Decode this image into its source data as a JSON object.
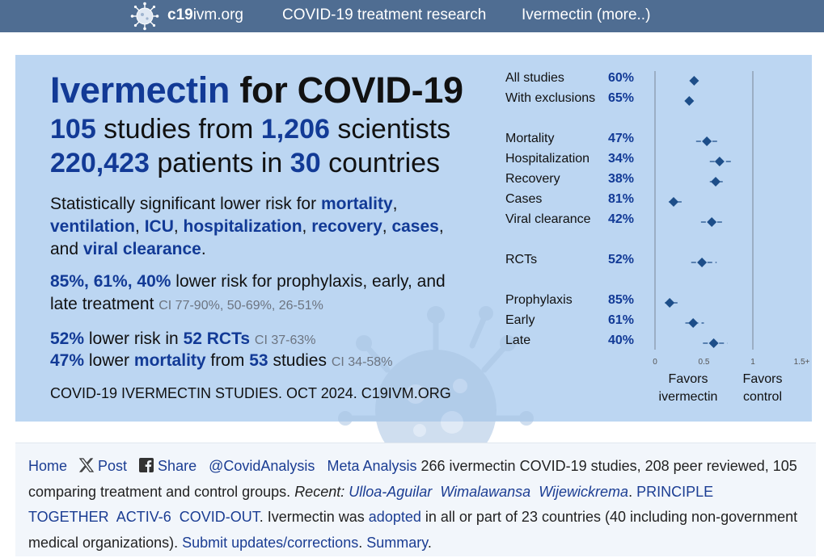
{
  "nav": {
    "site_bold": "c19",
    "site_rest": "ivm.org",
    "research": "COVID-19 treatment research",
    "more": "Ivermectin (more..)"
  },
  "banner": {
    "title_drug": "Ivermectin",
    "title_rest": " for COVID-19",
    "studies_num": "105",
    "studies_mid": " studies from ",
    "scientists_num": "1,206",
    "scientists_word": " scientists",
    "patients_num": "220,423",
    "patients_mid": " patients in ",
    "countries_num": "30",
    "countries_word": " countries",
    "sig_intro": "Statistically significant lower risk for ",
    "sig_items": [
      "mortality",
      "ventilation",
      "ICU",
      "hospitalization",
      "recovery",
      "cases"
    ],
    "sig_and": "and ",
    "sig_last": "viral clearance",
    "timing_pcts": "85%, 61%, 40%",
    "timing_text": " lower risk for prophylaxis, early, and late treatment ",
    "timing_ci": "CI 77-90%, 50-69%, 26-51%",
    "rct_pct": "52%",
    "rct_mid": " lower risk in ",
    "rct_count": "52 RCTs",
    "rct_ci": "CI 37-63%",
    "mort_pct": "47%",
    "mort_mid1": " lower ",
    "mort_word": "mortality",
    "mort_mid2": " from ",
    "mort_count": "53",
    "mort_mid3": " studies ",
    "mort_ci": "CI 34-58%",
    "footer": "COVID-19 IVERMECTIN STUDIES. OCT 2024. C19IVM.ORG"
  },
  "forest": {
    "rows": [
      {
        "label": "All studies",
        "value": "60%",
        "est": 0.4,
        "lo": 0.37,
        "hi": 0.44
      },
      {
        "label": "With exclusions",
        "value": "65%",
        "est": 0.35,
        "lo": 0.33,
        "hi": 0.38
      },
      {
        "label": "Mortality",
        "value": "47%",
        "est": 0.53,
        "lo": 0.42,
        "hi": 0.66
      },
      {
        "label": "Hospitalization",
        "value": "34%",
        "est": 0.66,
        "lo": 0.56,
        "hi": 0.78
      },
      {
        "label": "Recovery",
        "value": "38%",
        "est": 0.62,
        "lo": 0.56,
        "hi": 0.7
      },
      {
        "label": "Cases",
        "value": "81%",
        "est": 0.19,
        "lo": 0.14,
        "hi": 0.3
      },
      {
        "label": "Viral clearance",
        "value": "42%",
        "est": 0.58,
        "lo": 0.47,
        "hi": 0.71
      },
      {
        "label": "RCTs",
        "value": "52%",
        "est": 0.48,
        "lo": 0.37,
        "hi": 0.63
      },
      {
        "label": "Prophylaxis",
        "value": "85%",
        "est": 0.15,
        "lo": 0.1,
        "hi": 0.23
      },
      {
        "label": "Early",
        "value": "61%",
        "est": 0.39,
        "lo": 0.31,
        "hi": 0.5
      },
      {
        "label": "Late",
        "value": "40%",
        "est": 0.6,
        "lo": 0.49,
        "hi": 0.74
      }
    ],
    "ticks": [
      "0",
      "0.5",
      "1",
      "1.5+"
    ],
    "favors_left": "Favors",
    "favors_left2": "ivermectin",
    "favors_right": "Favors",
    "favors_right2": "control"
  },
  "info": {
    "home": "Home",
    "post": "Post",
    "share": "Share",
    "handle": "@CovidAnalysis",
    "meta": "Meta Analysis",
    "summary_text": " 266 ivermectin COVID-19 studies, 208 peer reviewed, 105 comparing treatment and control groups. ",
    "recent_label": "Recent:",
    "recent": [
      "Ulloa-Aguilar",
      "Wimalawansa",
      "Wijewickrema"
    ],
    "trials": [
      "PRINCIPLE",
      "TOGETHER",
      "ACTIV-6",
      "COVID-OUT"
    ],
    "adopt_pre": ". Ivermectin was ",
    "adopted": "adopted",
    "adopt_post": " in all or part of 23 countries (40 including non-government medical organizations). ",
    "submit": "Submit updates/corrections",
    "summary": "Summary"
  },
  "colors": {
    "topbar": "#4f6d92",
    "banner": "#bcd6f2",
    "accent": "#123a96",
    "diamond": "#1d4e89",
    "link": "#1b3d93"
  }
}
